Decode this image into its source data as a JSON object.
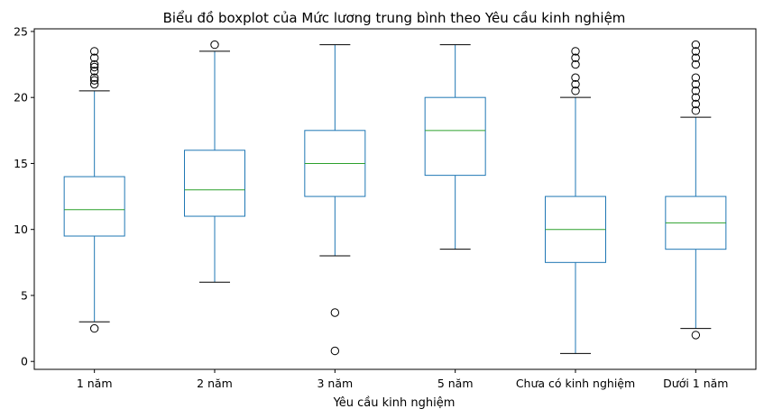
{
  "chart_data": {
    "type": "boxplot",
    "title": "Biểu đồ boxplot của Mức lương trung bình theo Yêu cầu kinh nghiệm",
    "xlabel": "Yêu cầu kinh nghiệm",
    "ylabel": "",
    "ylim": [
      -0.6,
      25.2
    ],
    "yticks": [
      0,
      5,
      10,
      15,
      20,
      25
    ],
    "grid": false,
    "colors": {
      "box": "#1f77b4",
      "median": "#2ca02c",
      "whisker": "#000000",
      "flier": "#000000"
    },
    "categories": [
      "1 năm",
      "2 năm",
      "3 năm",
      "5 năm",
      "Chưa có kinh nghiệm",
      "Dưới 1 năm"
    ],
    "boxes": [
      {
        "category": "1 năm",
        "whisker_low": 3,
        "q1": 9.5,
        "median": 11.5,
        "q3": 14,
        "whisker_high": 20.5,
        "outliers": [
          2.5,
          21,
          21.3,
          21.5,
          22,
          22.3,
          22.5,
          23,
          23.5
        ]
      },
      {
        "category": "2 năm",
        "whisker_low": 6,
        "q1": 11,
        "median": 13,
        "q3": 16,
        "whisker_high": 23.5,
        "outliers": [
          24
        ]
      },
      {
        "category": "3 năm",
        "whisker_low": 8,
        "q1": 12.5,
        "median": 15,
        "q3": 17.5,
        "whisker_high": 24,
        "outliers": [
          0.8,
          3.7
        ]
      },
      {
        "category": "5 năm",
        "whisker_low": 8.5,
        "q1": 14.1,
        "median": 17.5,
        "q3": 20,
        "whisker_high": 24,
        "outliers": []
      },
      {
        "category": "Chưa có kinh nghiệm",
        "whisker_low": 0.6,
        "q1": 7.5,
        "median": 10,
        "q3": 12.5,
        "whisker_high": 20,
        "outliers": [
          20.5,
          21,
          21.5,
          22.5,
          23,
          23.5
        ]
      },
      {
        "category": "Dưới 1 năm",
        "whisker_low": 2.5,
        "q1": 8.5,
        "median": 10.5,
        "q3": 12.5,
        "whisker_high": 18.5,
        "outliers": [
          2,
          19,
          19.5,
          20,
          20.5,
          21,
          21.5,
          22.5,
          23,
          23.5,
          24
        ]
      }
    ]
  }
}
